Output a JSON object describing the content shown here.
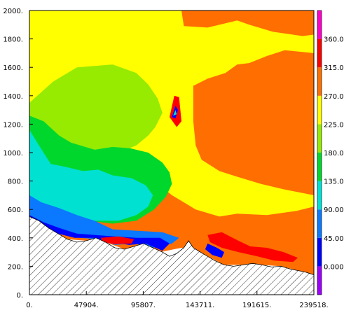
{
  "chart_data": {
    "type": "heatmap",
    "title": "",
    "xlabel": "",
    "ylabel": "",
    "xlim": [
      0,
      239518
    ],
    "ylim": [
      0,
      2000
    ],
    "x_ticks": [
      "0.",
      "47904.",
      "95807.",
      "143711.",
      "191615.",
      "239518."
    ],
    "x_tick_values": [
      0,
      47904,
      95807,
      143711,
      191615,
      239518
    ],
    "y_ticks": [
      "0.",
      "200.",
      "400.",
      "600.",
      "800.",
      "1000.",
      "1200.",
      "1400.",
      "1600.",
      "1800.",
      "2000."
    ],
    "y_tick_values": [
      0,
      200,
      400,
      600,
      800,
      1000,
      1200,
      1400,
      1600,
      1800,
      2000
    ],
    "colorbar": {
      "labels": [
        "0.000",
        "45.00",
        "90.00",
        "135.0",
        "180.0",
        "225.0",
        "270.0",
        "315.0",
        "360.0"
      ],
      "bins": [
        {
          "lo": -45,
          "hi": 0,
          "color": "#9b00ff"
        },
        {
          "lo": 0,
          "hi": 45,
          "color": "#0000ff"
        },
        {
          "lo": 45,
          "hi": 90,
          "color": "#0a78ff"
        },
        {
          "lo": 90,
          "hi": 135,
          "color": "#00e1d2"
        },
        {
          "lo": 135,
          "hi": 180,
          "color": "#00d72d"
        },
        {
          "lo": 180,
          "hi": 225,
          "color": "#96eb00"
        },
        {
          "lo": 225,
          "hi": 270,
          "color": "#ffff00"
        },
        {
          "lo": 270,
          "hi": 315,
          "color": "#ff6e00"
        },
        {
          "lo": 315,
          "hi": 360,
          "color": "#ff0000"
        },
        {
          "lo": 360,
          "hi": 405,
          "color": "#ff00c8"
        }
      ]
    },
    "terrain_profile": [
      [
        0,
        550
      ],
      [
        8000,
        520
      ],
      [
        16000,
        470
      ],
      [
        24000,
        430
      ],
      [
        32000,
        390
      ],
      [
        40000,
        370
      ],
      [
        48000,
        380
      ],
      [
        56000,
        400
      ],
      [
        64000,
        370
      ],
      [
        72000,
        330
      ],
      [
        80000,
        320
      ],
      [
        88000,
        340
      ],
      [
        96000,
        360
      ],
      [
        104000,
        330
      ],
      [
        112000,
        300
      ],
      [
        118000,
        270
      ],
      [
        124000,
        290
      ],
      [
        130000,
        330
      ],
      [
        134000,
        380
      ],
      [
        138000,
        330
      ],
      [
        142000,
        310
      ],
      [
        148000,
        280
      ],
      [
        156000,
        240
      ],
      [
        164000,
        210
      ],
      [
        172000,
        200
      ],
      [
        180000,
        210
      ],
      [
        188000,
        220
      ],
      [
        196000,
        210
      ],
      [
        204000,
        195
      ],
      [
        212000,
        200
      ],
      [
        220000,
        180
      ],
      [
        226000,
        170
      ],
      [
        232000,
        160
      ],
      [
        239518,
        140
      ]
    ],
    "contour_regions": [
      {
        "value": 290,
        "points": [
          [
            0,
            2000
          ],
          [
            239518,
            2000
          ],
          [
            239518,
            140
          ],
          [
            226000,
            170
          ],
          [
            212000,
            200
          ],
          [
            196000,
            210
          ],
          [
            180000,
            210
          ],
          [
            164000,
            210
          ],
          [
            148000,
            280
          ],
          [
            140000,
            310
          ],
          [
            128000,
            330
          ],
          [
            110000,
            300
          ],
          [
            96000,
            360
          ],
          [
            80000,
            320
          ],
          [
            64000,
            370
          ],
          [
            48000,
            380
          ],
          [
            32000,
            390
          ],
          [
            16000,
            470
          ],
          [
            0,
            550
          ]
        ]
      },
      {
        "value": 250,
        "points": [
          [
            0,
            2000
          ],
          [
            128000,
            2000
          ],
          [
            130000,
            1890
          ],
          [
            150000,
            1880
          ],
          [
            175000,
            1930
          ],
          [
            185000,
            1900
          ],
          [
            205000,
            1850
          ],
          [
            230000,
            1820
          ],
          [
            239518,
            1830
          ],
          [
            239518,
            1500
          ],
          [
            239518,
            1700
          ],
          [
            215000,
            1720
          ],
          [
            200000,
            1680
          ],
          [
            185000,
            1630
          ],
          [
            175000,
            1620
          ],
          [
            165000,
            1560
          ],
          [
            150000,
            1520
          ],
          [
            138000,
            1470
          ],
          [
            138000,
            1220
          ],
          [
            140000,
            1050
          ],
          [
            145000,
            950
          ],
          [
            160000,
            870
          ],
          [
            175000,
            830
          ],
          [
            195000,
            780
          ],
          [
            215000,
            740
          ],
          [
            239518,
            700
          ],
          [
            239518,
            620
          ],
          [
            225000,
            590
          ],
          [
            200000,
            560
          ],
          [
            175000,
            570
          ],
          [
            160000,
            550
          ],
          [
            140000,
            600
          ],
          [
            120000,
            700
          ],
          [
            105000,
            800
          ],
          [
            90000,
            880
          ],
          [
            60000,
            920
          ],
          [
            40000,
            1000
          ],
          [
            0,
            1200
          ]
        ]
      },
      {
        "value": 200,
        "points": [
          [
            0,
            1350
          ],
          [
            20000,
            1500
          ],
          [
            40000,
            1600
          ],
          [
            70000,
            1620
          ],
          [
            90000,
            1560
          ],
          [
            100000,
            1480
          ],
          [
            108000,
            1380
          ],
          [
            112000,
            1280
          ],
          [
            106000,
            1180
          ],
          [
            100000,
            1120
          ],
          [
            90000,
            1050
          ],
          [
            75000,
            1000
          ],
          [
            55000,
            940
          ],
          [
            35000,
            900
          ],
          [
            15000,
            880
          ],
          [
            0,
            900
          ]
        ]
      },
      {
        "value": 160,
        "points": [
          [
            0,
            1260
          ],
          [
            12000,
            1220
          ],
          [
            25000,
            1120
          ],
          [
            35000,
            1070
          ],
          [
            55000,
            1020
          ],
          [
            70000,
            1040
          ],
          [
            85000,
            1030
          ],
          [
            100000,
            1000
          ],
          [
            112000,
            930
          ],
          [
            118000,
            860
          ],
          [
            120000,
            780
          ],
          [
            115000,
            690
          ],
          [
            105000,
            600
          ],
          [
            90000,
            520
          ],
          [
            70000,
            500
          ],
          [
            50000,
            520
          ],
          [
            30000,
            580
          ],
          [
            10000,
            640
          ],
          [
            0,
            680
          ]
        ]
      },
      {
        "value": 120,
        "points": [
          [
            0,
            1160
          ],
          [
            8000,
            1050
          ],
          [
            18000,
            920
          ],
          [
            30000,
            900
          ],
          [
            45000,
            870
          ],
          [
            58000,
            880
          ],
          [
            70000,
            840
          ],
          [
            86000,
            820
          ],
          [
            98000,
            770
          ],
          [
            104000,
            700
          ],
          [
            100000,
            620
          ],
          [
            90000,
            560
          ],
          [
            75000,
            520
          ],
          [
            55000,
            520
          ],
          [
            35000,
            560
          ],
          [
            15000,
            620
          ],
          [
            0,
            660
          ]
        ]
      },
      {
        "value": 70,
        "points": [
          [
            0,
            700
          ],
          [
            10000,
            650
          ],
          [
            25000,
            610
          ],
          [
            40000,
            560
          ],
          [
            55000,
            520
          ],
          [
            70000,
            460
          ],
          [
            90000,
            450
          ],
          [
            112000,
            440
          ],
          [
            126000,
            400
          ],
          [
            120000,
            360
          ],
          [
            104000,
            330
          ],
          [
            88000,
            360
          ],
          [
            72000,
            350
          ],
          [
            58000,
            390
          ],
          [
            42000,
            400
          ],
          [
            28000,
            430
          ],
          [
            14000,
            470
          ],
          [
            0,
            530
          ]
        ]
      },
      {
        "value": 20,
        "points": [
          [
            0,
            560
          ],
          [
            12000,
            510
          ],
          [
            25000,
            470
          ],
          [
            40000,
            430
          ],
          [
            55000,
            420
          ],
          [
            72000,
            410
          ],
          [
            90000,
            400
          ],
          [
            110000,
            400
          ],
          [
            118000,
            360
          ],
          [
            112000,
            310
          ],
          [
            98000,
            360
          ],
          [
            84000,
            350
          ],
          [
            70000,
            370
          ],
          [
            54000,
            400
          ],
          [
            38000,
            400
          ],
          [
            24000,
            430
          ],
          [
            10000,
            480
          ],
          [
            0,
            520
          ]
        ]
      },
      {
        "value": 340,
        "points": [
          [
            118000,
            1250
          ],
          [
            122000,
            1400
          ],
          [
            126000,
            1390
          ],
          [
            128000,
            1220
          ],
          [
            124000,
            1180
          ]
        ]
      },
      {
        "value": 340,
        "points": [
          [
            150000,
            420
          ],
          [
            162000,
            440
          ],
          [
            176000,
            380
          ],
          [
            186000,
            340
          ],
          [
            200000,
            330
          ],
          [
            214000,
            300
          ],
          [
            226000,
            260
          ],
          [
            222000,
            230
          ],
          [
            206000,
            240
          ],
          [
            192000,
            270
          ],
          [
            176000,
            300
          ],
          [
            162000,
            330
          ],
          [
            152000,
            370
          ]
        ]
      },
      {
        "value": 340,
        "points": [
          [
            60000,
            400
          ],
          [
            75000,
            410
          ],
          [
            88000,
            390
          ],
          [
            86000,
            360
          ],
          [
            72000,
            355
          ],
          [
            62000,
            370
          ]
        ]
      },
      {
        "value": 20,
        "points": [
          [
            120000,
            1250
          ],
          [
            123000,
            1330
          ],
          [
            125000,
            1300
          ],
          [
            123000,
            1240
          ]
        ]
      },
      {
        "value": 20,
        "points": [
          [
            150000,
            360
          ],
          [
            158000,
            330
          ],
          [
            164000,
            300
          ],
          [
            162000,
            260
          ],
          [
            154000,
            280
          ],
          [
            148000,
            320
          ]
        ]
      },
      {
        "value": 120,
        "points": [
          [
            121000,
            1260
          ],
          [
            123000,
            1300
          ],
          [
            124000,
            1270
          ]
        ]
      }
    ]
  }
}
